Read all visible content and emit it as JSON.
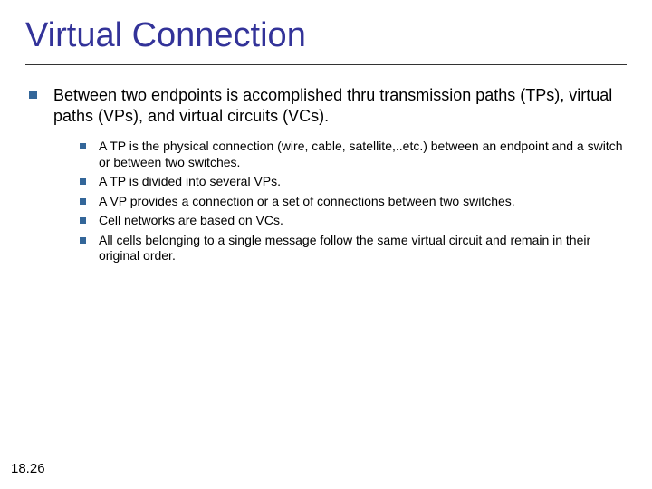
{
  "title": "Virtual Connection",
  "title_color": "#333399",
  "title_fontsize": 38,
  "divider_color": "#333333",
  "bullet_color": "#336699",
  "text_color": "#000000",
  "background_color": "#ffffff",
  "main_bullet": "Between two endpoints is accomplished thru transmission paths (TPs), virtual paths (VPs), and virtual circuits (VCs).",
  "main_fontsize": 18,
  "sub_fontsize": 14,
  "sub_bullets": {
    "item0": "A TP is the physical connection (wire, cable, satellite,..etc.) between an endpoint and a switch or between two switches.",
    "item1": "A TP is divided into several VPs.",
    "item2": "A VP provides a connection or a set of connections between two switches.",
    "item3": "Cell networks are based on VCs.",
    "item4": "All cells belonging to a single message follow the same virtual circuit and remain in their original order."
  },
  "slide_number": "18.26"
}
